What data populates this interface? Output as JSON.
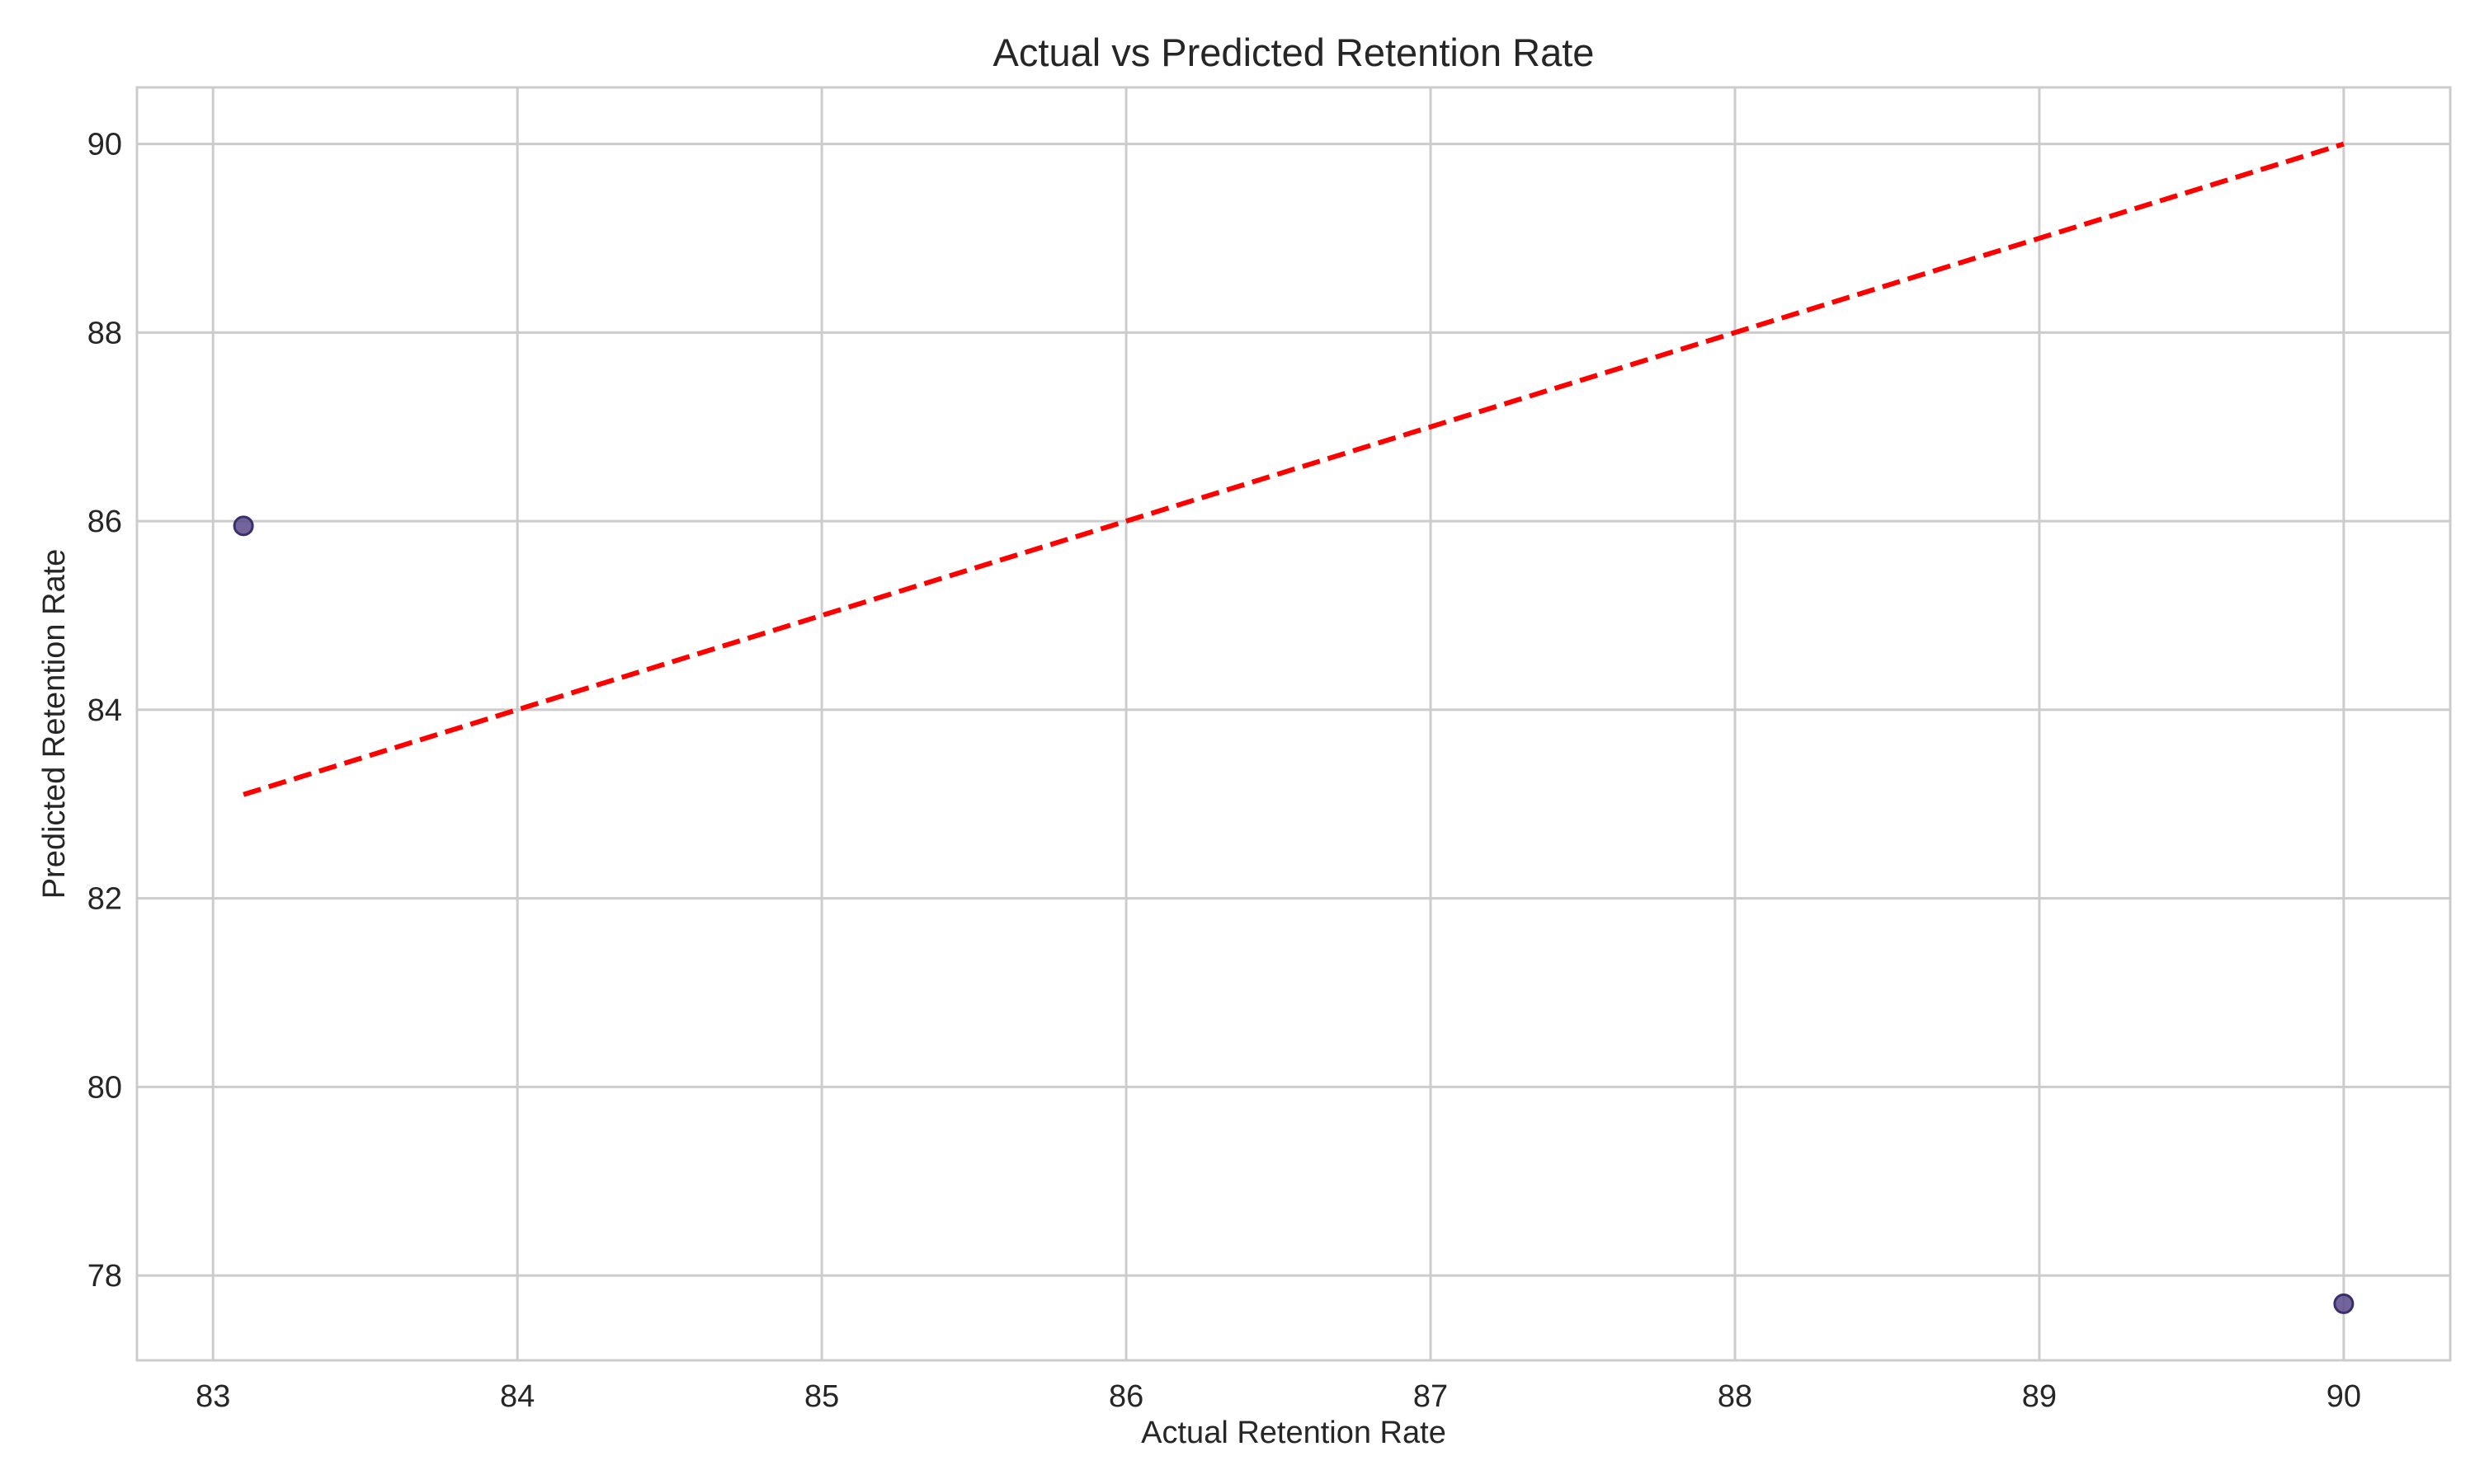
{
  "chart_data": {
    "type": "scatter",
    "title": "Actual vs Predicted Retention Rate",
    "xlabel": "Actual Retention Rate",
    "ylabel": "Predicted Retention Rate",
    "xlim": [
      82.75,
      90.35
    ],
    "ylim": [
      77.1,
      90.6
    ],
    "xticks": [
      83,
      84,
      85,
      86,
      87,
      88,
      89,
      90
    ],
    "yticks": [
      78,
      80,
      82,
      84,
      86,
      88,
      90
    ],
    "grid": true,
    "series": [
      {
        "points": [
          {
            "x": 83.1,
            "y": 85.95
          },
          {
            "x": 90.0,
            "y": 77.7
          }
        ],
        "color": "#5b4a8b"
      }
    ],
    "reference_line": {
      "from": [
        83.1,
        83.1
      ],
      "to": [
        90.0,
        90.0
      ],
      "style": "dashed",
      "color": "#ff0000"
    }
  }
}
